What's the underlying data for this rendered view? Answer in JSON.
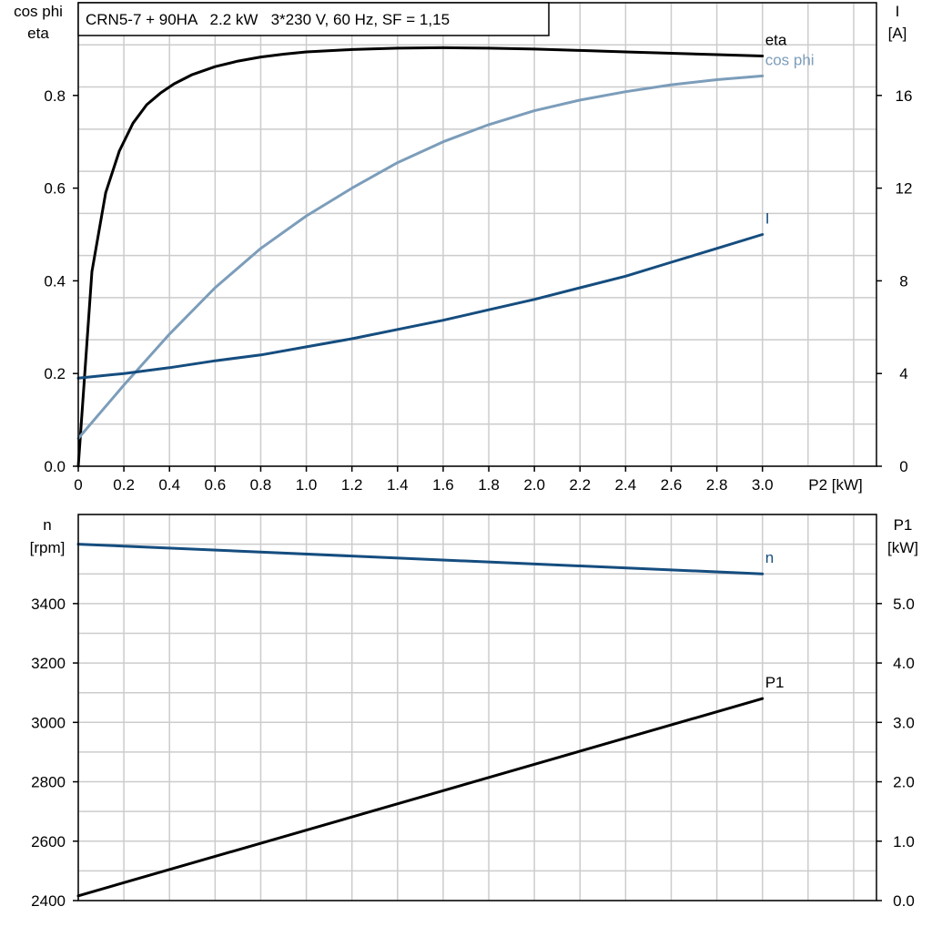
{
  "colors": {
    "eta": "#000000",
    "cos_phi": "#7c9dba",
    "I": "#154d7f",
    "n": "#154d7f",
    "P1": "#000000"
  },
  "chart_data": [
    {
      "type": "line",
      "title": "CRN5-7 + 90HA   2.2 kW   3*230 V, 60 Hz, SF = 1,15",
      "xlabel": "P2 [kW]",
      "ylabel_left": [
        "cos phi",
        "eta"
      ],
      "ylabel_right": [
        "I",
        "[A]"
      ],
      "xlim": [
        0,
        3.5
      ],
      "ylim_left": [
        0,
        1.0
      ],
      "ylim_right": [
        0,
        20
      ],
      "x_ticks": [
        "0",
        "0.2",
        "0.4",
        "0.6",
        "0.8",
        "1.0",
        "1.2",
        "1.4",
        "1.6",
        "1.8",
        "2.0",
        "2.2",
        "2.4",
        "2.6",
        "2.8",
        "3.0"
      ],
      "y_ticks_left": [
        "0.0",
        "0.2",
        "0.4",
        "0.6",
        "0.8"
      ],
      "y_ticks_right": [
        "0",
        "4",
        "8",
        "12",
        "16"
      ],
      "grid": true,
      "series": [
        {
          "name": "eta",
          "axis": "left",
          "color_key": "eta",
          "x": [
            0,
            0.06,
            0.12,
            0.18,
            0.24,
            0.3,
            0.36,
            0.42,
            0.5,
            0.6,
            0.7,
            0.8,
            0.9,
            1.0,
            1.2,
            1.4,
            1.6,
            1.8,
            2.0,
            2.2,
            2.4,
            2.6,
            2.8,
            3.0
          ],
          "y": [
            0.0,
            0.42,
            0.59,
            0.68,
            0.74,
            0.78,
            0.805,
            0.825,
            0.845,
            0.862,
            0.874,
            0.883,
            0.889,
            0.894,
            0.899,
            0.902,
            0.903,
            0.902,
            0.9,
            0.897,
            0.894,
            0.891,
            0.888,
            0.885
          ]
        },
        {
          "name": "cos phi",
          "axis": "left",
          "color_key": "cos_phi",
          "x": [
            0,
            0.2,
            0.4,
            0.6,
            0.8,
            1.0,
            1.2,
            1.4,
            1.6,
            1.8,
            2.0,
            2.2,
            2.4,
            2.6,
            2.8,
            3.0
          ],
          "y": [
            0.06,
            0.175,
            0.285,
            0.385,
            0.47,
            0.54,
            0.6,
            0.655,
            0.7,
            0.737,
            0.767,
            0.79,
            0.808,
            0.823,
            0.834,
            0.842
          ]
        },
        {
          "name": "I",
          "axis": "right",
          "color_key": "I",
          "x": [
            0,
            0.2,
            0.4,
            0.6,
            0.8,
            1.0,
            1.2,
            1.4,
            1.6,
            1.8,
            2.0,
            2.2,
            2.4,
            2.6,
            2.8,
            3.0
          ],
          "y": [
            3.8,
            4.0,
            4.25,
            4.55,
            4.8,
            5.15,
            5.5,
            5.9,
            6.3,
            6.75,
            7.2,
            7.7,
            8.2,
            8.8,
            9.4,
            10.0
          ]
        }
      ]
    },
    {
      "type": "line",
      "xlim": [
        0,
        3.5
      ],
      "ylabel_left": [
        "n",
        "[rpm]"
      ],
      "ylabel_right": [
        "P1",
        "[kW]"
      ],
      "ylim_left": [
        2400,
        3700
      ],
      "ylim_right": [
        0,
        6.5
      ],
      "y_ticks_left": [
        "2400",
        "2600",
        "2800",
        "3000",
        "3200",
        "3400"
      ],
      "y_ticks_right": [
        "0.0",
        "1.0",
        "2.0",
        "3.0",
        "4.0",
        "5.0"
      ],
      "grid": true,
      "series": [
        {
          "name": "n",
          "axis": "left",
          "color_key": "n",
          "x": [
            0,
            3.0
          ],
          "y": [
            3600,
            3500
          ]
        },
        {
          "name": "P1",
          "axis": "right",
          "color_key": "P1",
          "x": [
            0,
            3.0
          ],
          "y": [
            0.08,
            3.4
          ]
        }
      ]
    }
  ]
}
